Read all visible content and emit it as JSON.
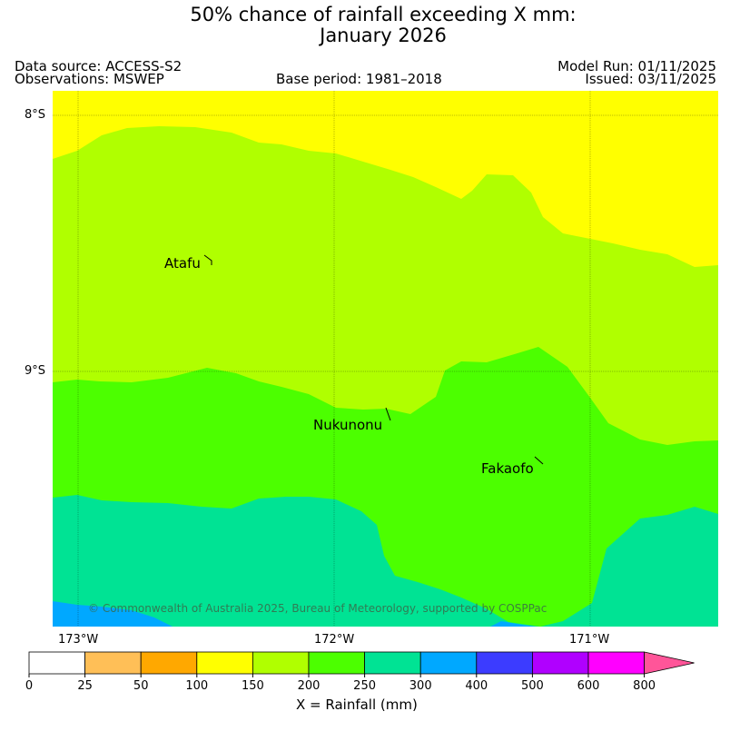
{
  "title": {
    "line1": "50% chance of rainfall exceeding X mm:",
    "line2": "January 2026"
  },
  "meta": {
    "data_source": "Data source: ACCESS-S2",
    "observations": "Observations: MSWEP",
    "base_period": "Base period: 1981–2018",
    "model_run": "Model Run: 01/11/2025",
    "issued": "Issued: 03/11/2025"
  },
  "map": {
    "lat_labels": [
      "8°S",
      "9°S"
    ],
    "lon_labels": [
      "173°W",
      "172°W",
      "171°W"
    ],
    "places": [
      "Atafu",
      "Nukunonu",
      "Fakaofo"
    ],
    "copyright": "© Commonwealth of Australia 2025, Bureau of Meteorology, supported by COSPPac",
    "band_colors": {
      "yellow": "#ffff00",
      "yellowgreen": "#b0ff00",
      "green": "#4cff00",
      "teal": "#00e394",
      "blue": "#00a8ff"
    }
  },
  "colorbar": {
    "boundaries": [
      "0",
      "25",
      "50",
      "100",
      "150",
      "200",
      "250",
      "300",
      "400",
      "500",
      "600",
      "800"
    ],
    "colors": [
      "#ffffff",
      "#ffbf57",
      "#ffa800",
      "#ffff00",
      "#b0ff00",
      "#4cff00",
      "#00e394",
      "#00a8ff",
      "#3c3cff",
      "#b000ff",
      "#ff00ff"
    ],
    "extend_color": "#ff5599",
    "xlabel": "X = Rainfall (mm)"
  }
}
